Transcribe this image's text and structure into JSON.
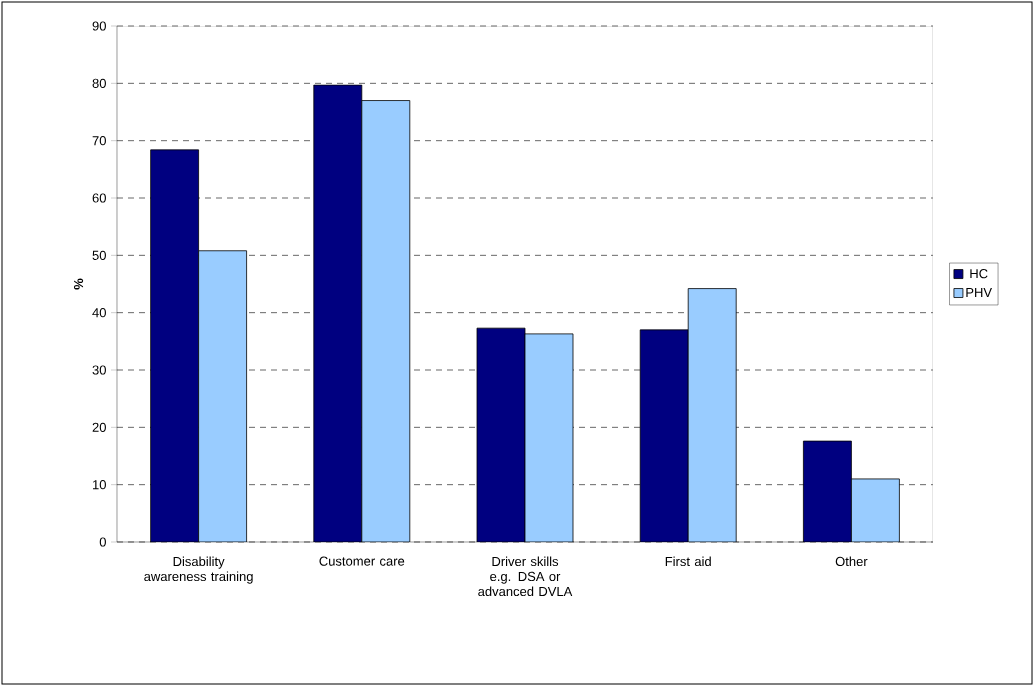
{
  "chart_data": {
    "type": "bar",
    "ylabel": "%",
    "categories": [
      "Disability awareness training",
      "Customer care",
      "Driver skills e.g. DSA or advanced DVLA",
      "First aid",
      "Other"
    ],
    "series": [
      {
        "name": "HC",
        "color": "#000080",
        "values": [
          68.4,
          79.7,
          37.3,
          37.0,
          17.6
        ]
      },
      {
        "name": "PHV",
        "color": "#99ccff",
        "values": [
          50.8,
          77.0,
          36.3,
          44.2,
          11.0
        ]
      }
    ],
    "ylim": [
      0,
      90
    ],
    "yticks": [
      0,
      10,
      20,
      30,
      40,
      50,
      60,
      70,
      80,
      90
    ],
    "grid": "y",
    "legend": "right"
  }
}
